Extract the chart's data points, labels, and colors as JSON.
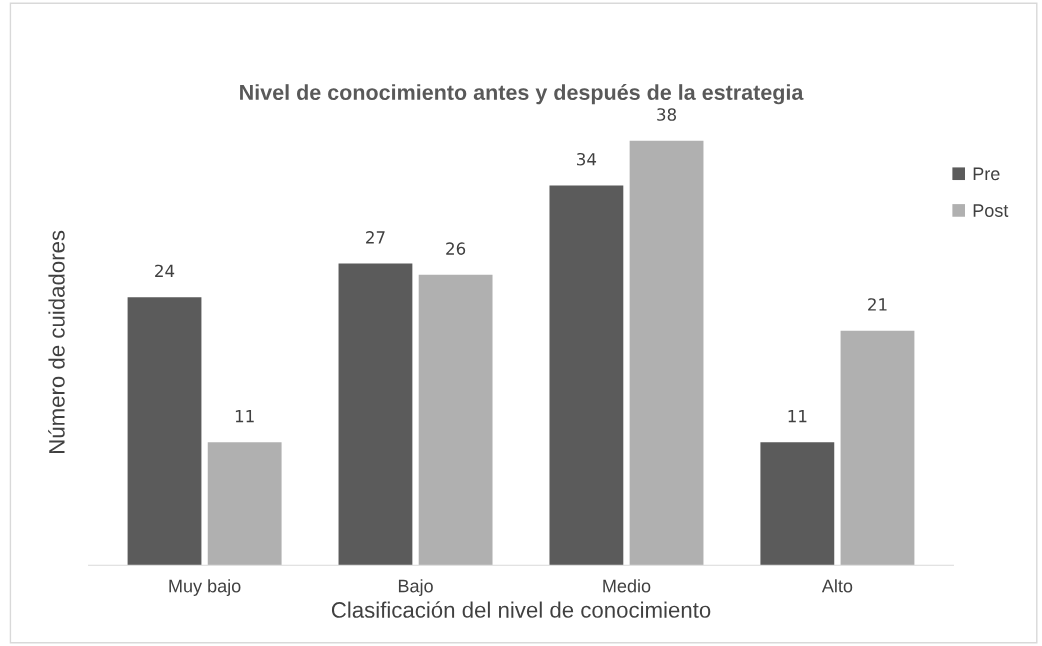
{
  "chart_data": {
    "type": "bar",
    "title": "Nivel de conocimiento antes y después de la estrategia",
    "xlabel": "Clasificación del nivel de conocimiento",
    "ylabel": "Número de cuidadores",
    "categories": [
      "Muy bajo",
      "Bajo",
      "Medio",
      "Alto"
    ],
    "series": [
      {
        "name": "Pre",
        "color": "#5b5b5b",
        "values": [
          24,
          27,
          34,
          11
        ]
      },
      {
        "name": "Post",
        "color": "#b0b0b0",
        "values": [
          11,
          26,
          38,
          21
        ]
      }
    ],
    "data_labels": true,
    "legend": "top right",
    "tick_labels": "x",
    "grid": false
  }
}
